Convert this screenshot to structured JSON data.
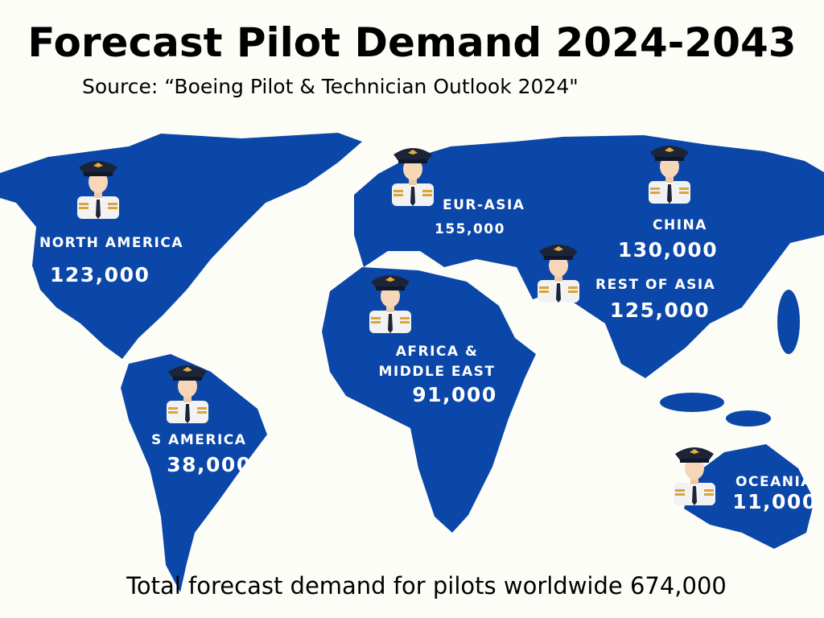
{
  "header": {
    "title": "Forecast Pilot Demand 2024-2043",
    "source": "Source: “Boeing  Pilot & Technician Outlook 2024\""
  },
  "regions": [
    {
      "name_lines": [
        "NORTH AMERICA"
      ],
      "demand": "123,000"
    },
    {
      "name_lines": [
        "EUR-ASIA"
      ],
      "demand": "155,000"
    },
    {
      "name_lines": [
        "CHINA"
      ],
      "demand": "130,000"
    },
    {
      "name_lines": [
        "REST OF ASIA"
      ],
      "demand": "125,000"
    },
    {
      "name_lines": [
        "AFRICA &",
        "MIDDLE EAST"
      ],
      "demand": "91,000"
    },
    {
      "name_lines": [
        "S AMERICA"
      ],
      "demand": "38,000"
    },
    {
      "name_lines": [
        "OCEANIA"
      ],
      "demand": "11,000"
    }
  ],
  "footer": "Total forecast demand for pilots worldwide 674,000"
}
